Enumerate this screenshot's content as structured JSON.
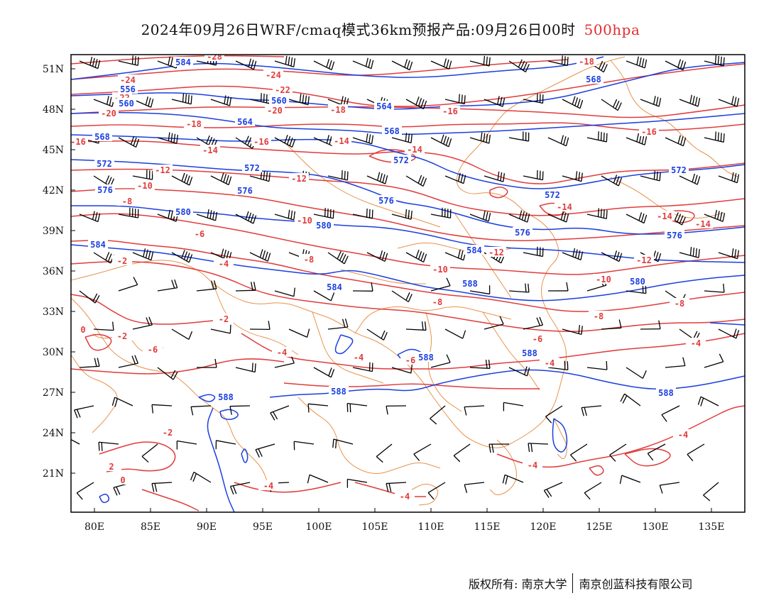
{
  "title": {
    "text": "2024年09月26日WRF/cmaq模式36km预报产品:09月26日00时",
    "level": "500hpa"
  },
  "colors": {
    "temperature": "#e03c3c",
    "geopotential": "#1a3fe0",
    "borders": "#e8924a",
    "wind": "#000000",
    "title_level": "#e03030"
  },
  "axes": {
    "lat_labels": [
      "51N",
      "48N",
      "45N",
      "42N",
      "39N",
      "36N",
      "33N",
      "30N",
      "27N",
      "24N",
      "21N"
    ],
    "lon_labels": [
      "80E",
      "85E",
      "90E",
      "95E",
      "100E",
      "105E",
      "110E",
      "115E",
      "120E",
      "125E",
      "130E",
      "135E"
    ]
  },
  "contours": {
    "geopotential_labels": [
      "556",
      "560",
      "564",
      "568",
      "572",
      "576",
      "580",
      "584",
      "588"
    ],
    "temperature_labels": [
      "-28",
      "-24",
      "-22",
      "-20",
      "-18",
      "-16",
      "-14",
      "-12",
      "-10",
      "-8",
      "-6",
      "-4",
      "-2",
      "0"
    ]
  },
  "footer": {
    "copyright_left": "版权所有: 南京大学",
    "copyright_right": "南京创蓝科技有限公司"
  }
}
